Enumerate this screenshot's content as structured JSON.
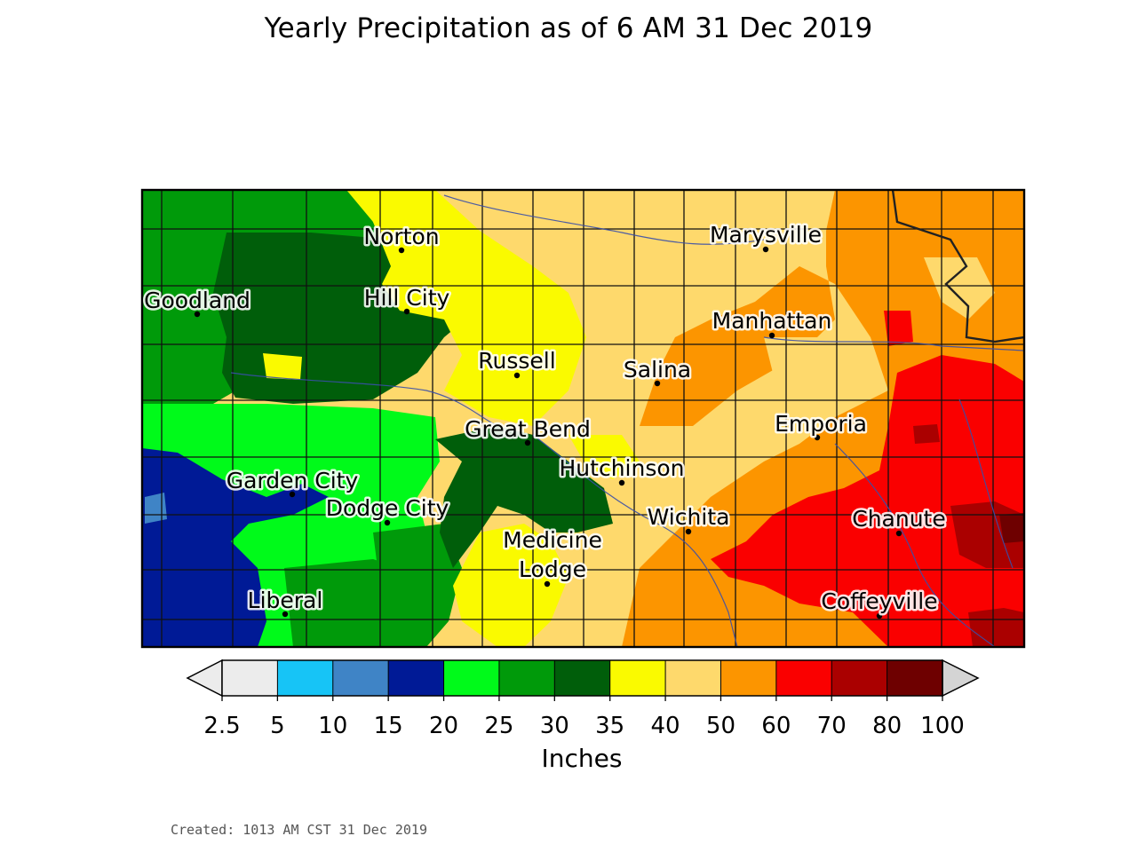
{
  "title": "Yearly Precipitation as of 6 AM 31 Dec 2019",
  "footer": {
    "created": "Created: 1013 AM CST 31 Dec 2019"
  },
  "legend": {
    "units": "Inches",
    "ticks": [
      "2.5",
      "5",
      "10",
      "15",
      "20",
      "25",
      "30",
      "35",
      "40",
      "50",
      "60",
      "70",
      "80",
      "100"
    ],
    "bins": [
      {
        "min": 2.5,
        "max": 5,
        "color": "#ececec"
      },
      {
        "min": 5,
        "max": 10,
        "color": "#17c4f6"
      },
      {
        "min": 10,
        "max": 15,
        "color": "#3f84c6"
      },
      {
        "min": 15,
        "max": 20,
        "color": "#001a96"
      },
      {
        "min": 20,
        "max": 25,
        "color": "#00fa1a"
      },
      {
        "min": 25,
        "max": 30,
        "color": "#009a0a"
      },
      {
        "min": 30,
        "max": 35,
        "color": "#005e0a"
      },
      {
        "min": 35,
        "max": 40,
        "color": "#fafa00"
      },
      {
        "min": 40,
        "max": 50,
        "color": "#fed96c"
      },
      {
        "min": 50,
        "max": 60,
        "color": "#fc9500"
      },
      {
        "min": 60,
        "max": 70,
        "color": "#fa0000"
      },
      {
        "min": 70,
        "max": 80,
        "color": "#aa0000"
      },
      {
        "min": 80,
        "max": 100,
        "color": "#6e0000"
      }
    ],
    "under_color": "#ececec",
    "over_color": "#d4d4d4"
  },
  "cities": [
    {
      "name": "Norton"
    },
    {
      "name": "Marysville"
    },
    {
      "name": "Goodland"
    },
    {
      "name": "Hill City"
    },
    {
      "name": "Manhattan"
    },
    {
      "name": "Russell"
    },
    {
      "name": "Salina"
    },
    {
      "name": "Emporia"
    },
    {
      "name": "Great Bend"
    },
    {
      "name": "Hutchinson"
    },
    {
      "name": "Garden City"
    },
    {
      "name": "Dodge City"
    },
    {
      "name": "Wichita"
    },
    {
      "name": "Chanute"
    },
    {
      "name": "Medicine Lodge"
    },
    {
      "name": "Liberal"
    },
    {
      "name": "Coffeyville"
    }
  ]
}
